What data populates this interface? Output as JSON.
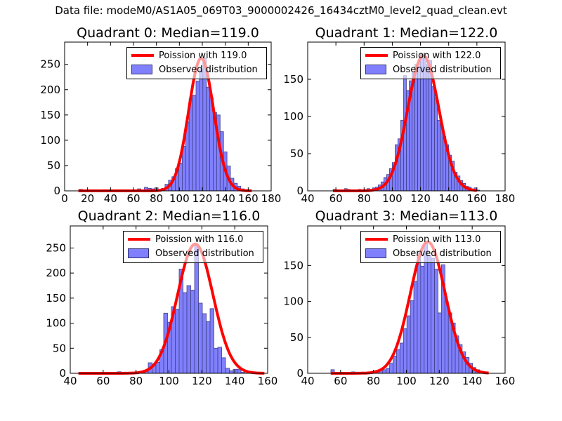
{
  "figure_title": "Data file: modeM0/AS1A05_069T03_9000002426_16434cztM0_level2_quad_clean.evt",
  "colors": {
    "bar_fill": "#8080ff",
    "bar_edge": "#404088",
    "curve": "#ff0000"
  },
  "chart_data": [
    {
      "type": "bar",
      "title": "Quadrant 0: Median=119.0",
      "legend": [
        "Poission with 119.0",
        "Observed distribution"
      ],
      "legend_position": "top-right",
      "median": 119.0,
      "xlim": [
        0,
        180
      ],
      "ylim": [
        0,
        294
      ],
      "xticks": [
        0,
        20,
        40,
        60,
        80,
        100,
        120,
        140,
        160,
        180
      ],
      "yticks": [
        0,
        50,
        100,
        150,
        200,
        250
      ],
      "bin_start": 12.5,
      "bin_width": 3,
      "values": [
        3,
        0,
        0,
        1,
        0,
        1,
        0,
        1,
        0,
        0,
        1,
        0,
        0,
        0,
        0,
        0,
        0,
        4,
        1,
        7,
        5,
        4,
        6,
        3,
        5,
        13,
        21,
        28,
        44,
        55,
        88,
        136,
        182,
        189,
        217,
        240,
        262,
        205,
        184,
        155,
        150,
        117,
        77,
        49,
        25,
        15,
        9,
        4,
        2,
        1
      ],
      "curve_peak": 262,
      "curve_range": [
        12,
        163
      ]
    },
    {
      "type": "bar",
      "title": "Quadrant 1: Median=122.0",
      "legend": [
        "Poission with 122.0",
        "Observed distribution"
      ],
      "legend_position": "top-right",
      "median": 122.0,
      "xlim": [
        40,
        180
      ],
      "ylim": [
        0,
        200
      ],
      "xticks": [
        40,
        60,
        80,
        100,
        120,
        140,
        160,
        180
      ],
      "yticks": [
        0,
        50,
        100,
        150
      ],
      "bin_start": 58,
      "bin_width": 2,
      "values": [
        2,
        0,
        0,
        0,
        3,
        2,
        1,
        1,
        0,
        2,
        1,
        1,
        3,
        2,
        4,
        5,
        8,
        12,
        18,
        22,
        30,
        38,
        62,
        70,
        95,
        155,
        135,
        148,
        160,
        170,
        175,
        185,
        178,
        170,
        175,
        140,
        125,
        95,
        90,
        73,
        62,
        48,
        40,
        25,
        20,
        14,
        10,
        6,
        5,
        2,
        4,
        1
      ],
      "curve_peak": 182,
      "curve_range": [
        58,
        160
      ]
    },
    {
      "type": "bar",
      "title": "Quadrant 2: Median=116.0",
      "legend": [
        "Poission with 116.0",
        "Observed distribution"
      ],
      "legend_position": "top-right",
      "median": 116.0,
      "xlim": [
        40,
        160
      ],
      "ylim": [
        0,
        294
      ],
      "xticks": [
        40,
        60,
        80,
        100,
        120,
        140,
        160
      ],
      "yticks": [
        0,
        50,
        100,
        150,
        200,
        250
      ],
      "bin_start": 45.1,
      "bin_width": 2.35,
      "values": [
        1,
        0,
        0,
        0,
        0,
        0,
        0,
        0,
        0,
        0,
        3,
        0,
        0,
        0,
        0,
        2,
        2,
        4,
        21,
        16,
        22,
        47,
        120,
        102,
        133,
        128,
        208,
        161,
        175,
        166,
        257,
        140,
        119,
        103,
        129,
        50,
        52,
        31,
        10,
        5,
        8,
        8,
        2
      ],
      "curve_peak": 258,
      "curve_range": [
        45,
        158
      ]
    },
    {
      "type": "bar",
      "title": "Quadrant 3: Median=113.0",
      "legend": [
        "Poission with 113.0",
        "Observed distribution"
      ],
      "legend_position": "top-right",
      "median": 113.0,
      "xlim": [
        40,
        160
      ],
      "ylim": [
        0,
        205
      ],
      "xticks": [
        40,
        60,
        80,
        100,
        120,
        140,
        160
      ],
      "yticks": [
        0,
        50,
        100,
        150
      ],
      "bin_start": 54.1,
      "bin_width": 2.1,
      "values": [
        5,
        0,
        0,
        1,
        0,
        0,
        2,
        0,
        0,
        1,
        0,
        0,
        2,
        4,
        5,
        5,
        7,
        14,
        24,
        33,
        42,
        62,
        80,
        101,
        128,
        168,
        149,
        180,
        164,
        160,
        145,
        84,
        151,
        100,
        84,
        70,
        52,
        40,
        30,
        22,
        14,
        8,
        5,
        3,
        2
      ],
      "curve_peak": 183,
      "curve_range": [
        54,
        150
      ]
    }
  ]
}
